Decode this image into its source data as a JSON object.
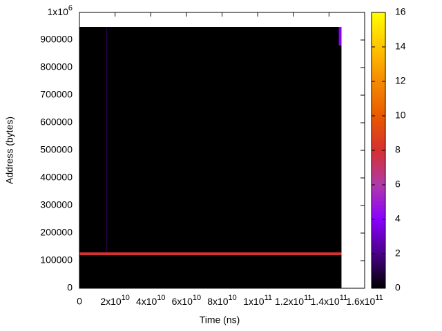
{
  "chart_data": {
    "type": "heatmap",
    "xlabel": "Time (ns)",
    "ylabel": "Address (bytes)",
    "xlim": [
      0,
      160000000000
    ],
    "ylim": [
      0,
      1000000
    ],
    "zlim": [
      0,
      16
    ],
    "xticks": [
      0,
      {
        "value": 20000000000,
        "label": "2x10",
        "exponent": "10"
      },
      {
        "value": 40000000000,
        "label": "4x10",
        "exponent": "10"
      },
      {
        "value": 60000000000,
        "label": "6x10",
        "exponent": "10"
      },
      {
        "value": 80000000000,
        "label": "8x10",
        "exponent": "10"
      },
      {
        "value": 100000000000,
        "label": "1x10",
        "exponent": "11"
      },
      {
        "value": 120000000000,
        "label": "1.2x10",
        "exponent": "11"
      },
      {
        "value": 140000000000,
        "label": "1.4x10",
        "exponent": "11"
      },
      {
        "value": 160000000000,
        "label": "1.6x10",
        "exponent": "11"
      }
    ],
    "yticks": [
      0,
      100000,
      200000,
      300000,
      400000,
      500000,
      600000,
      700000,
      800000,
      900000,
      {
        "value": 1000000,
        "label": "1x10",
        "exponent": "6"
      }
    ],
    "zticks": [
      0,
      2,
      4,
      6,
      8,
      10,
      12,
      14,
      16
    ],
    "palette": [
      "#000000",
      "#4a0088",
      "#8a00ff",
      "#b03aa8",
      "#d63030",
      "#e85a00",
      "#f58a00",
      "#ffc400",
      "#ffff00"
    ],
    "cells": [
      {
        "x": [
          0,
          147000000000
        ],
        "y": [
          0,
          947500
        ],
        "value": 0
      },
      {
        "x": [
          0,
          147000000000
        ],
        "y": [
          120000,
          130000
        ],
        "value": 8
      },
      {
        "x": [
          15000000000,
          15600000000
        ],
        "y": [
          130000,
          947500
        ],
        "value": 1
      },
      {
        "x": [
          145500000000,
          147000000000
        ],
        "y": [
          880000,
          947500
        ],
        "value": 4
      }
    ]
  }
}
